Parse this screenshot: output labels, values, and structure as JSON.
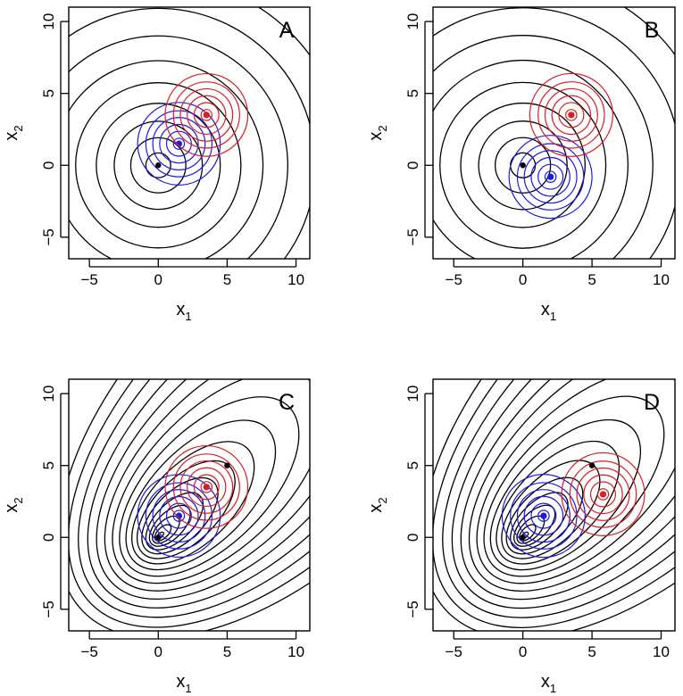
{
  "colors": {
    "background": "#ffffff",
    "black_contours": "#000000",
    "blue_contours": "#1a1ae6",
    "red_contours": "#d81e1e",
    "frame": "#000000"
  },
  "chart_data": [
    {
      "type": "contour",
      "panel_label": "A",
      "xlabel": "x",
      "xlabel_subscript": "1",
      "ylabel": "x",
      "ylabel_subscript": "2",
      "xlim": [
        -6.5,
        11
      ],
      "ylim": [
        -6.5,
        11
      ],
      "xticks": [
        -5,
        0,
        5,
        10
      ],
      "yticks": [
        -5,
        0,
        5,
        10
      ],
      "xtick_labels": [
        "−5",
        "0",
        "5",
        "10"
      ],
      "ytick_labels": [
        "−5",
        "0",
        "5",
        "10"
      ],
      "background_field": {
        "center": [
          0,
          0
        ],
        "shape": "circular",
        "radii": [
          0.9,
          2,
          3.2,
          4.5,
          6,
          7.6,
          9.4,
          11.4,
          13.6,
          16
        ]
      },
      "distributions": [
        {
          "color": "blue",
          "center": [
            1.5,
            1.5
          ],
          "radii": [
            0.4,
            0.9,
            1.4,
            1.9,
            2.4,
            3.0
          ]
        },
        {
          "color": "red",
          "center": [
            3.5,
            3.5
          ],
          "radii": [
            0.4,
            0.9,
            1.4,
            1.9,
            2.4,
            3.0
          ]
        }
      ],
      "points": [
        {
          "color": "black",
          "x": 0,
          "y": 0
        }
      ]
    },
    {
      "type": "contour",
      "panel_label": "B",
      "xlabel": "x",
      "xlabel_subscript": "1",
      "ylabel": "x",
      "ylabel_subscript": "2",
      "xlim": [
        -6.5,
        11
      ],
      "ylim": [
        -6.5,
        11
      ],
      "xticks": [
        -5,
        0,
        5,
        10
      ],
      "yticks": [
        -5,
        0,
        5,
        10
      ],
      "xtick_labels": [
        "−5",
        "0",
        "5",
        "10"
      ],
      "ytick_labels": [
        "−5",
        "0",
        "5",
        "10"
      ],
      "background_field": {
        "center": [
          0,
          0
        ],
        "shape": "circular",
        "radii": [
          0.9,
          2,
          3.2,
          4.5,
          6,
          7.6,
          9.4,
          11.4,
          13.6,
          16
        ]
      },
      "distributions": [
        {
          "color": "blue",
          "center": [
            2,
            -0.8
          ],
          "radii": [
            0.4,
            0.9,
            1.4,
            1.9,
            2.4,
            3.0
          ]
        },
        {
          "color": "red",
          "center": [
            3.5,
            3.5
          ],
          "radii": [
            0.4,
            0.9,
            1.4,
            1.9,
            2.4,
            3.0
          ]
        }
      ],
      "points": [
        {
          "color": "black",
          "x": 0,
          "y": 0
        }
      ]
    },
    {
      "type": "contour",
      "panel_label": "C",
      "xlabel": "x",
      "xlabel_subscript": "1",
      "ylabel": "x",
      "ylabel_subscript": "2",
      "xlim": [
        -6.5,
        11
      ],
      "ylim": [
        -6.5,
        11
      ],
      "xticks": [
        -5,
        0,
        5,
        10
      ],
      "yticks": [
        -5,
        0,
        5,
        10
      ],
      "xtick_labels": [
        "−5",
        "0",
        "5",
        "10"
      ],
      "ytick_labels": [
        "−5",
        "0",
        "5",
        "10"
      ],
      "background_field": {
        "center": [
          0,
          0
        ],
        "shape": "elongated along x2 = x1",
        "radii": [
          0.5,
          1.2,
          2,
          3,
          4.2,
          5.6,
          7.2,
          9,
          11,
          13.2,
          15.6,
          18.2,
          21,
          24,
          27.2,
          30.6,
          34.2
        ]
      },
      "distributions": [
        {
          "color": "blue",
          "center": [
            1.5,
            1.5
          ],
          "radii": [
            0.4,
            0.9,
            1.4,
            1.9,
            2.4,
            3.0
          ]
        },
        {
          "color": "red",
          "center": [
            3.5,
            3.5
          ],
          "radii": [
            0.4,
            0.9,
            1.4,
            1.9,
            2.4,
            3.0
          ]
        }
      ],
      "points": [
        {
          "color": "black",
          "x": 5,
          "y": 5
        },
        {
          "color": "black",
          "x": 0,
          "y": 0
        }
      ]
    },
    {
      "type": "contour",
      "panel_label": "D",
      "xlabel": "x",
      "xlabel_subscript": "1",
      "ylabel": "x",
      "ylabel_subscript": "2",
      "xlim": [
        -6.5,
        11
      ],
      "ylim": [
        -6.5,
        11
      ],
      "xticks": [
        -5,
        0,
        5,
        10
      ],
      "yticks": [
        -5,
        0,
        5,
        10
      ],
      "xtick_labels": [
        "−5",
        "0",
        "5",
        "10"
      ],
      "ytick_labels": [
        "−5",
        "0",
        "5",
        "10"
      ],
      "background_field": {
        "center": [
          0,
          0
        ],
        "shape": "elongated along x2 = x1",
        "radii": [
          0.5,
          1.2,
          2,
          3,
          4.2,
          5.6,
          7.2,
          9,
          11,
          13.2,
          15.6,
          18.2,
          21,
          24,
          27.2,
          30.6,
          34.2
        ]
      },
      "distributions": [
        {
          "color": "blue",
          "center": [
            1.5,
            1.5
          ],
          "radii": [
            0.4,
            0.9,
            1.4,
            1.9,
            2.4,
            3.0
          ]
        },
        {
          "color": "red",
          "center": [
            5.8,
            3
          ],
          "radii": [
            0.4,
            0.9,
            1.4,
            1.9,
            2.4,
            3.0
          ]
        }
      ],
      "points": [
        {
          "color": "black",
          "x": 5,
          "y": 5
        },
        {
          "color": "black",
          "x": 0,
          "y": 0
        }
      ]
    }
  ]
}
